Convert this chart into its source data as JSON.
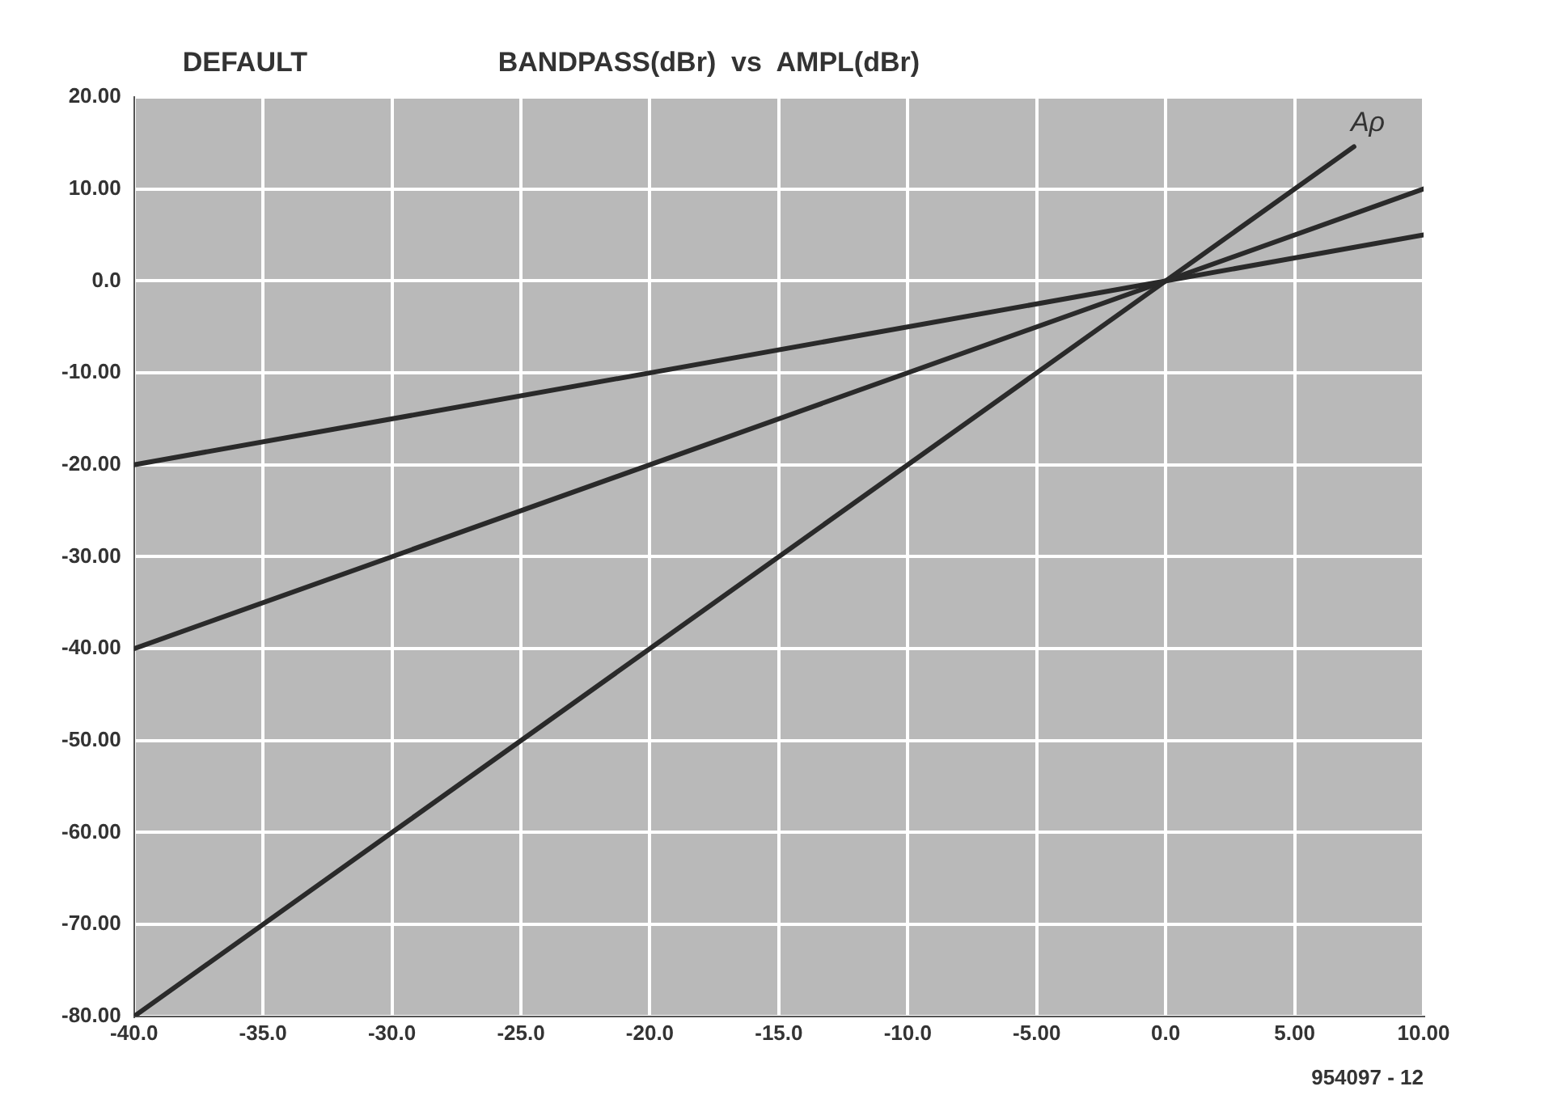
{
  "chart_data": {
    "type": "line",
    "title": "BANDPASS(dBr)  vs  AMPL(dBr)",
    "subtitle": "DEFAULT",
    "series": [
      {
        "color": "#2a2a2a",
        "x": [
          -40,
          10
        ],
        "values": [
          -20,
          5
        ]
      },
      {
        "color": "#2a2a2a",
        "x": [
          -40,
          10
        ],
        "values": [
          -40,
          10
        ]
      },
      {
        "color": "#2a2a2a",
        "x": [
          -40,
          7.3
        ],
        "values": [
          -80,
          14.6
        ]
      }
    ],
    "xlim": [
      -40,
      10
    ],
    "xticks": [
      {
        "value": -40,
        "label": "-40.0"
      },
      {
        "value": -35,
        "label": "-35.0"
      },
      {
        "value": -30,
        "label": "-30.0"
      },
      {
        "value": -25,
        "label": "-25.0"
      },
      {
        "value": -20,
        "label": "-20.0"
      },
      {
        "value": -15,
        "label": "-15.0"
      },
      {
        "value": -10,
        "label": "-10.0"
      },
      {
        "value": -5,
        "label": "-5.00"
      },
      {
        "value": 0,
        "label": "0.0"
      },
      {
        "value": 5,
        "label": "5.00"
      },
      {
        "value": 10,
        "label": "10.00"
      }
    ],
    "ylim": [
      -80,
      20
    ],
    "yticks": [
      {
        "value": -80,
        "label": "-80.00"
      },
      {
        "value": -70,
        "label": "-70.00"
      },
      {
        "value": -60,
        "label": "-60.00"
      },
      {
        "value": -50,
        "label": "-50.00"
      },
      {
        "value": -40,
        "label": "-40.00"
      },
      {
        "value": -30,
        "label": "-30.00"
      },
      {
        "value": -20,
        "label": "-20.00"
      },
      {
        "value": -10,
        "label": "-10.00"
      },
      {
        "value": 0,
        "label": "0.0"
      },
      {
        "value": 10,
        "label": "10.00"
      },
      {
        "value": 20,
        "label": "20.00"
      }
    ],
    "grid": true,
    "legend": false,
    "marker": "none",
    "line_style": "solid",
    "annotations": [
      {
        "text": "Aρ",
        "x": 7.3,
        "y": 14.6
      },
      "954097 - 12"
    ]
  }
}
